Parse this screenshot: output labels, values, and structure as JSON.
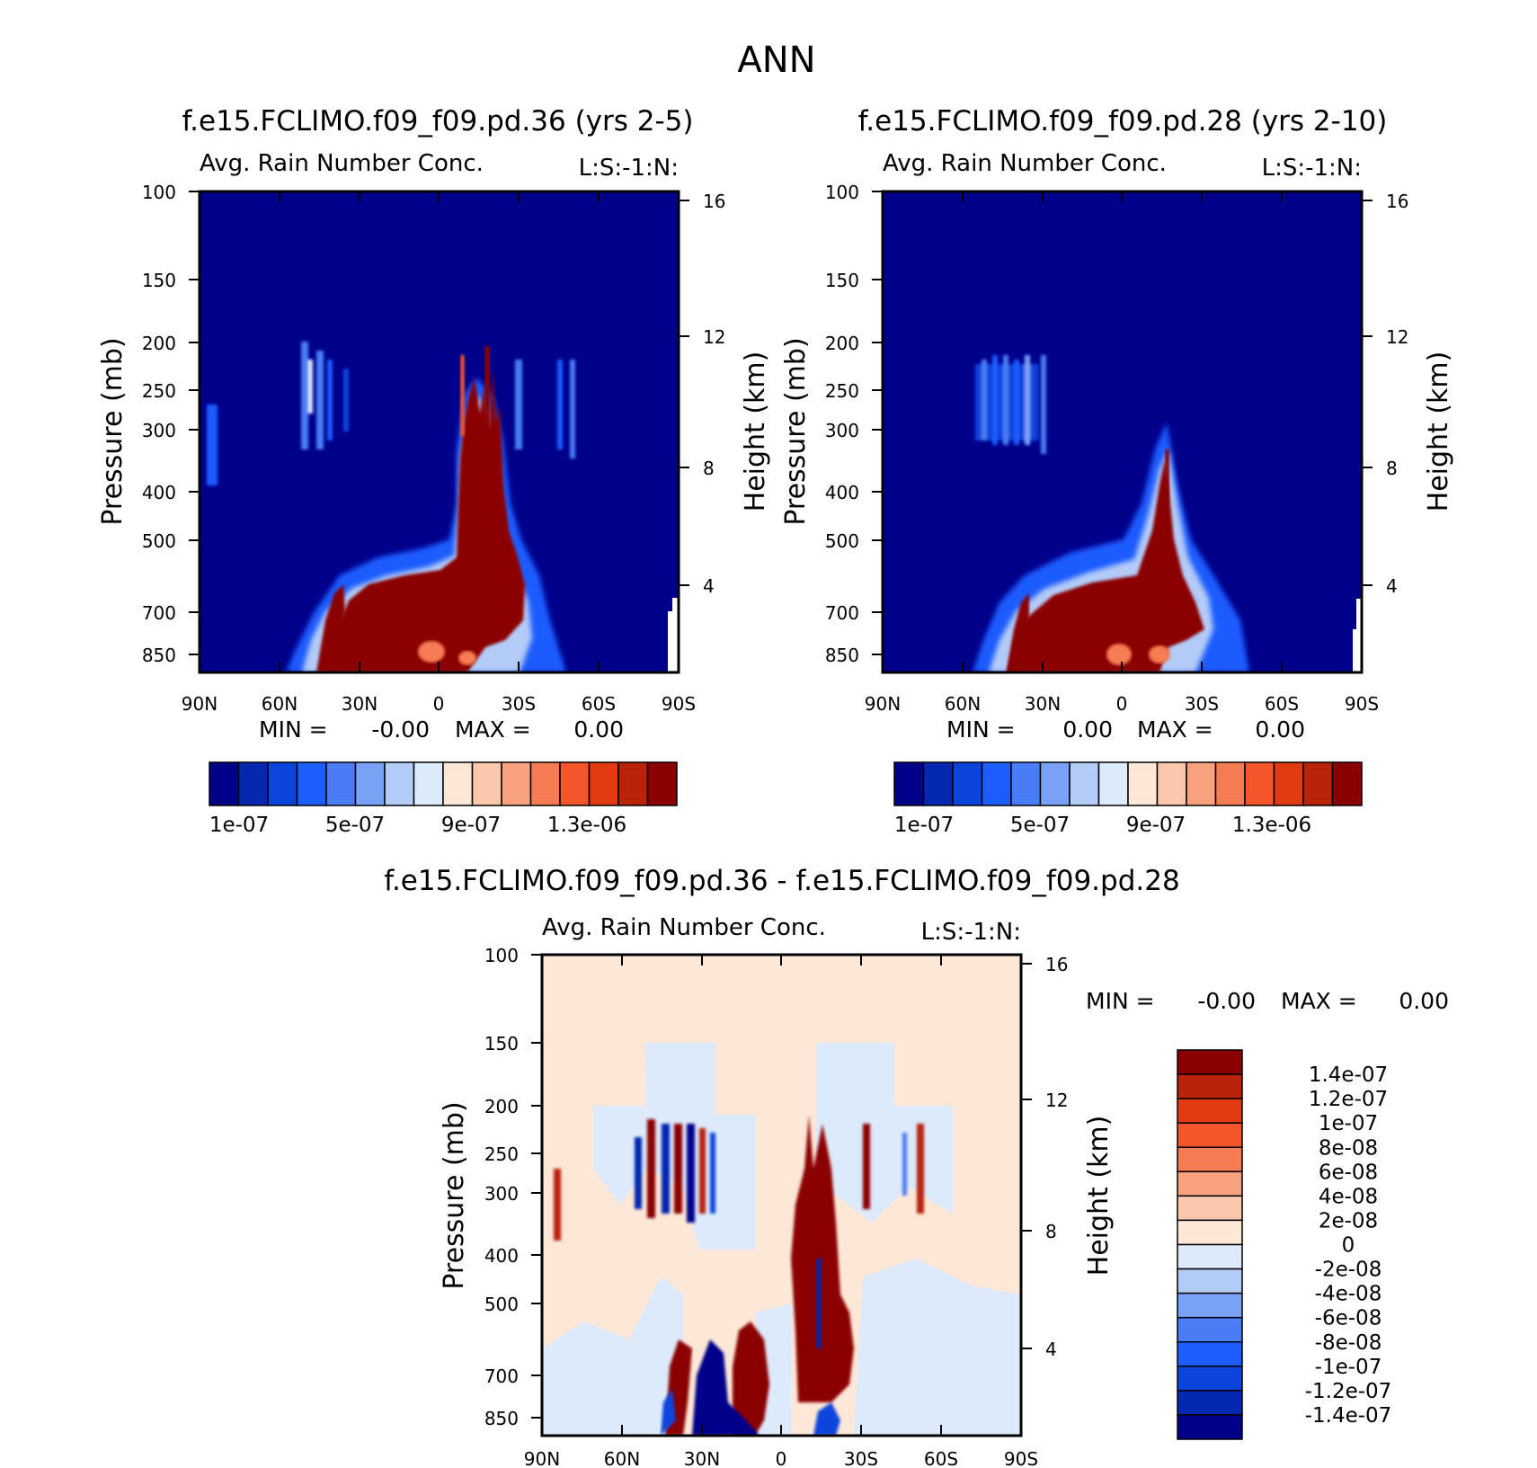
{
  "figure": {
    "title": "ANN"
  },
  "chart_data": [
    {
      "type": "heatmap",
      "panel": "top-left",
      "title": "f.e15.FCLIMO.f09_f09.pd.36 (yrs 2-5)",
      "variable": "Avg. Rain Number Conc.",
      "tag": "L:S:-1:N:",
      "ylabel": "Pressure (mb)",
      "y2label": "Height (km)",
      "x_ticks": [
        "90N",
        "60N",
        "30N",
        "0",
        "30S",
        "60S",
        "90S"
      ],
      "y_ticks": [
        "100",
        "150",
        "200",
        "250",
        "300",
        "400",
        "500",
        "700",
        "850"
      ],
      "y2_ticks": [
        "16",
        "12",
        "8",
        "4"
      ],
      "min_label": "MIN =",
      "min_value": "-0.00",
      "max_label": "MAX =",
      "max_value": "0.00",
      "colorbar_labels": [
        "1e-07",
        "5e-07",
        "9e-07",
        "1.3e-06"
      ],
      "colorbar_levels": 16
    },
    {
      "type": "heatmap",
      "panel": "top-right",
      "title": "f.e15.FCLIMO.f09_f09.pd.28 (yrs 2-10)",
      "variable": "Avg. Rain Number Conc.",
      "tag": "L:S:-1:N:",
      "ylabel": "Pressure (mb)",
      "y2label": "Height (km)",
      "x_ticks": [
        "90N",
        "60N",
        "30N",
        "0",
        "30S",
        "60S",
        "90S"
      ],
      "y_ticks": [
        "100",
        "150",
        "200",
        "250",
        "300",
        "400",
        "500",
        "700",
        "850"
      ],
      "y2_ticks": [
        "16",
        "12",
        "8",
        "4"
      ],
      "min_label": "MIN =",
      "min_value": "0.00",
      "max_label": "MAX =",
      "max_value": "0.00",
      "colorbar_labels": [
        "1e-07",
        "5e-07",
        "9e-07",
        "1.3e-06"
      ],
      "colorbar_levels": 16
    },
    {
      "type": "heatmap",
      "panel": "bottom-difference",
      "title": "f.e15.FCLIMO.f09_f09.pd.36 - f.e15.FCLIMO.f09_f09.pd.28",
      "variable": "Avg. Rain Number Conc.",
      "tag": "L:S:-1:N:",
      "ylabel": "Pressure (mb)",
      "y2label": "Height (km)",
      "x_ticks": [
        "90N",
        "60N",
        "30N",
        "0",
        "30S",
        "60S",
        "90S"
      ],
      "y_ticks": [
        "100",
        "150",
        "200",
        "250",
        "300",
        "400",
        "500",
        "700",
        "850"
      ],
      "y2_ticks": [
        "16",
        "12",
        "8",
        "4"
      ],
      "min_label": "MIN =",
      "min_value": "-0.00",
      "max_label": "MAX =",
      "max_value": "0.00",
      "colorbar_labels": [
        "1.4e-07",
        "1.2e-07",
        "1e-07",
        "8e-08",
        "6e-08",
        "4e-08",
        "2e-08",
        "0",
        "-2e-08",
        "-4e-08",
        "-6e-08",
        "-8e-08",
        "-1e-07",
        "-1.2e-07",
        "-1.4e-07"
      ]
    }
  ],
  "colors": {
    "seq": [
      "#00008b",
      "#0528b0",
      "#0c45dc",
      "#1d5cff",
      "#4a7df5",
      "#7aa2f7",
      "#b3cbf7",
      "#ddeafb",
      "#fde8d8",
      "#fbc8ad",
      "#f8a27f",
      "#f57c52",
      "#f4552a",
      "#e23b12",
      "#b8230a",
      "#8b0000"
    ],
    "div": [
      "#8b0000",
      "#b8230a",
      "#e23b12",
      "#f4552a",
      "#f57c52",
      "#f8a27f",
      "#fbc8ad",
      "#fde8d8",
      "#ddeafb",
      "#b3cbf7",
      "#7aa2f7",
      "#4a7df5",
      "#1d5cff",
      "#0c45dc",
      "#0528b0",
      "#00008b"
    ]
  }
}
